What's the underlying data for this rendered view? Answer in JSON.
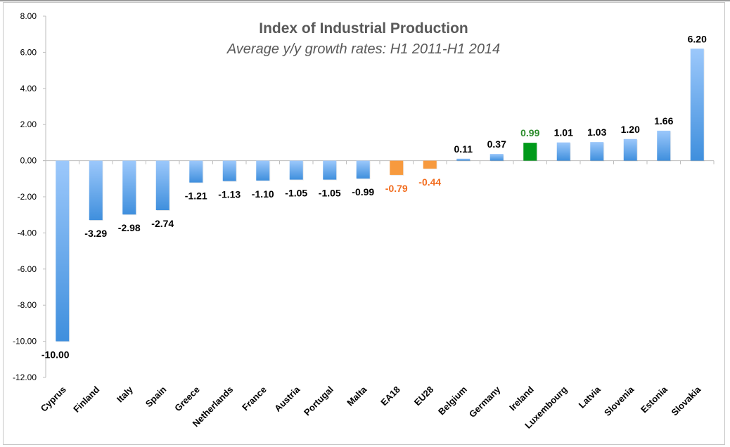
{
  "chart_data": {
    "type": "bar",
    "title": "Index of Industrial Production",
    "subtitle": "Average y/y growth rates: H1 2011-H1 2014",
    "xlabel": "",
    "ylabel": "",
    "ylim": [
      -12,
      8
    ],
    "ytick_step": 2,
    "yticks": [
      "8.00",
      "6.00",
      "4.00",
      "2.00",
      "0.00",
      "-2.00",
      "-4.00",
      "-6.00",
      "-8.00",
      "-10.00",
      "-12.00"
    ],
    "grid": false,
    "legend": "none",
    "categories": [
      "Cyprus",
      "Finland",
      "Italy",
      "Spain",
      "Greece",
      "Netherlands",
      "France",
      "Austria",
      "Portugal",
      "Malta",
      "EA18",
      "EU28",
      "Belgium",
      "Germany",
      "Ireland",
      "Luxembourg",
      "Latvia",
      "Slovenia",
      "Estonia",
      "Slovakia"
    ],
    "values": [
      -10.0,
      -3.29,
      -2.98,
      -2.74,
      -1.21,
      -1.13,
      -1.1,
      -1.05,
      -1.05,
      -0.99,
      -0.79,
      -0.44,
      0.11,
      0.37,
      0.99,
      1.01,
      1.03,
      1.2,
      1.66,
      6.2
    ],
    "value_labels": [
      "-10.00",
      "-3.29",
      "-2.98",
      "-2.74",
      "-1.21",
      "-1.13",
      "-1.10",
      "-1.05",
      "-1.05",
      "-0.99",
      "-0.79",
      "-0.44",
      "0.11",
      "0.37",
      "0.99",
      "1.01",
      "1.03",
      "1.20",
      "1.66",
      "6.20"
    ],
    "highlight": {
      "EA18": "aggregate",
      "EU28": "aggregate",
      "Ireland": "focus"
    },
    "colors": {
      "default_light": "#9cc8fb",
      "default_dark": "#3f8fdd",
      "aggregate": "#f79a3e",
      "aggregate_label": "#f26d1f",
      "focus": "#009a1a",
      "focus_label": "#2c8c2c",
      "label": "#000000"
    }
  }
}
